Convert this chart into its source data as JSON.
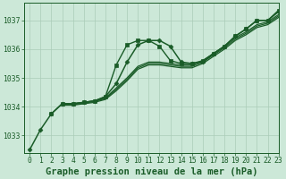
{
  "background_color": "#cce8d8",
  "grid_color": "#aaccb8",
  "line_color": "#1a5c28",
  "title": "Graphe pression niveau de la mer (hPa)",
  "xlim": [
    -0.5,
    23
  ],
  "ylim": [
    1032.4,
    1037.6
  ],
  "yticks": [
    1033,
    1034,
    1035,
    1036,
    1037
  ],
  "xticks": [
    0,
    1,
    2,
    3,
    4,
    5,
    6,
    7,
    8,
    9,
    10,
    11,
    12,
    13,
    14,
    15,
    16,
    17,
    18,
    19,
    20,
    21,
    22,
    23
  ],
  "series": [
    {
      "x": [
        0,
        1,
        2,
        3,
        4,
        5,
        6,
        7,
        8,
        9,
        10,
        11,
        12,
        13,
        14,
        15,
        16,
        17,
        18,
        19,
        20,
        21,
        22,
        23
      ],
      "y": [
        1032.5,
        1033.2,
        1033.75,
        1034.1,
        1034.1,
        1034.15,
        1034.2,
        1034.35,
        1034.8,
        1035.55,
        1036.15,
        1036.3,
        1036.3,
        1036.1,
        1035.55,
        1035.5,
        1035.55,
        1035.85,
        1036.1,
        1036.45,
        1036.7,
        1037.0,
        1037.0,
        1037.3
      ],
      "marker": "D",
      "markersize": 2.5,
      "linewidth": 1.1,
      "linestyle": "-"
    },
    {
      "x": [
        3,
        4,
        5,
        6,
        7,
        8,
        9,
        10,
        11,
        12,
        13,
        14,
        15,
        16,
        17,
        18,
        19,
        20,
        21,
        22,
        23
      ],
      "y": [
        1034.05,
        1034.05,
        1034.1,
        1034.15,
        1034.25,
        1034.55,
        1034.9,
        1035.3,
        1035.45,
        1035.45,
        1035.4,
        1035.35,
        1035.35,
        1035.5,
        1035.75,
        1036.0,
        1036.3,
        1036.5,
        1036.75,
        1036.85,
        1037.1
      ],
      "marker": null,
      "markersize": 0,
      "linewidth": 0.9,
      "linestyle": "-"
    },
    {
      "x": [
        3,
        4,
        5,
        6,
        7,
        8,
        9,
        10,
        11,
        12,
        13,
        14,
        15,
        16,
        17,
        18,
        19,
        20,
        21,
        22,
        23
      ],
      "y": [
        1034.08,
        1034.07,
        1034.12,
        1034.18,
        1034.28,
        1034.6,
        1034.95,
        1035.35,
        1035.5,
        1035.5,
        1035.45,
        1035.4,
        1035.4,
        1035.55,
        1035.8,
        1036.05,
        1036.35,
        1036.55,
        1036.8,
        1036.9,
        1037.15
      ],
      "marker": null,
      "markersize": 0,
      "linewidth": 0.9,
      "linestyle": "-"
    },
    {
      "x": [
        3,
        4,
        5,
        6,
        7,
        8,
        9,
        10,
        11,
        12,
        13,
        14,
        15,
        16,
        17,
        18,
        19,
        20,
        21,
        22,
        23
      ],
      "y": [
        1034.1,
        1034.1,
        1034.15,
        1034.2,
        1034.3,
        1034.65,
        1035.0,
        1035.4,
        1035.55,
        1035.55,
        1035.5,
        1035.45,
        1035.45,
        1035.6,
        1035.85,
        1036.1,
        1036.4,
        1036.6,
        1036.85,
        1036.95,
        1037.2
      ],
      "marker": null,
      "markersize": 0,
      "linewidth": 0.9,
      "linestyle": "-"
    },
    {
      "x": [
        2,
        3,
        4,
        5,
        6,
        7,
        8,
        9,
        10,
        11,
        12,
        13,
        14,
        15,
        16,
        17,
        18,
        19,
        20,
        21,
        22,
        23
      ],
      "y": [
        1033.75,
        1034.1,
        1034.1,
        1034.15,
        1034.2,
        1034.35,
        1035.45,
        1036.15,
        1036.3,
        1036.3,
        1036.1,
        1035.6,
        1035.5,
        1035.5,
        1035.6,
        1035.85,
        1036.1,
        1036.45,
        1036.7,
        1037.0,
        1037.0,
        1037.35
      ],
      "marker": "s",
      "markersize": 2.5,
      "linewidth": 1.0,
      "linestyle": "-"
    }
  ],
  "title_fontsize": 7.5,
  "tick_fontsize": 5.8
}
